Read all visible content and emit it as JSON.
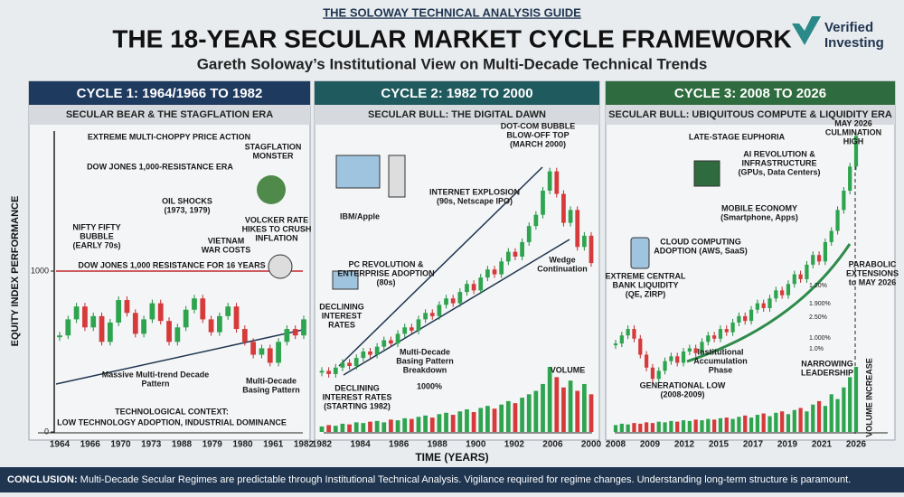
{
  "header": {
    "kicker": "THE SOLOWAY TECHNICAL ANALYSIS GUIDE",
    "title": "THE 18-YEAR SECULAR MARKET CYCLE FRAMEWORK",
    "subtitle": "Gareth Soloway’s Institutional View on Multi-Decade Technical Trends",
    "logo": [
      "Verified",
      "Investing"
    ]
  },
  "axis": {
    "y_label": "EQUITY INDEX PERFORMANCE",
    "yticks": [
      0,
      1000
    ],
    "x_label": "TIME (YEARS)"
  },
  "panels": [
    {
      "title": "CYCLE 1: 1964/1966 TO 1982",
      "subtitle": "SECULAR BEAR & THE STAGFLATION ERA",
      "annotations": [
        [
          "EXTREME MULTI-CHOPPY PRICE ACTION"
        ],
        [
          "DOW JONES 1,000-RESISTANCE ERA"
        ],
        [
          "STAGFLATION",
          "MONSTER"
        ],
        [
          "NIFTY FIFTY",
          "BUBBLE",
          "(EARLY 70s)"
        ],
        [
          "OIL SHOCKS",
          "(1973, 1979)"
        ],
        [
          "VIETNAM",
          "WAR COSTS"
        ],
        [
          "VOLCKER RATE",
          "HIKES TO CRUSH",
          "INFLATION"
        ],
        [
          "DOW JONES 1,000 RESISTANCE FOR 16 YEARS"
        ],
        [
          "Massive Multi-trend Decade",
          "Pattern"
        ],
        [
          "Multi-Decade",
          "Basing Pattern"
        ],
        [
          "TECHNOLOGICAL CONTEXT:"
        ],
        [
          "LOW TECHNOLOGY ADOPTION, INDUSTRIAL DOMINANCE"
        ]
      ],
      "years": [
        "1964",
        "1966",
        "1970",
        "1973",
        "1988",
        "1979",
        "1980",
        "1961",
        "1982"
      ],
      "closes": [
        600,
        700,
        780,
        650,
        720,
        560,
        680,
        820,
        740,
        610,
        700,
        800,
        690,
        560,
        650,
        760,
        830,
        700,
        620,
        720,
        780,
        640,
        560,
        480,
        520,
        430,
        560,
        640,
        600,
        700
      ],
      "volume": []
    },
    {
      "title": "CYCLE 2: 1982 TO 2000",
      "subtitle": "SECULAR BULL: THE DIGITAL DAWN",
      "annotations": [
        [
          "DOT-COM BUBBLE",
          "BLOW-OFF TOP",
          "(MARCH 2000)"
        ],
        [
          "INTERNET EXPLOSION",
          "(90s, Netscape IPO)"
        ],
        [
          "IBM/Apple"
        ],
        [
          "PC REVOLUTION &",
          "ENTERPRISE ADOPTION",
          "(80s)"
        ],
        [
          "Wedge",
          "Continuation"
        ],
        [
          "DECLINING",
          "INTEREST",
          "RATES"
        ],
        [
          "Multi-Decade",
          "Basing Pattern",
          "Breakdown"
        ],
        [
          "1000%"
        ],
        [
          "VOLUME"
        ],
        [
          "DECLINING",
          "INTEREST RATES",
          "(STARTING 1982)"
        ]
      ],
      "years": [
        "1982",
        "1984",
        "1986",
        "1988",
        "1900",
        "1902",
        "2006",
        "2000"
      ],
      "closes": [
        380,
        360,
        400,
        430,
        410,
        460,
        500,
        480,
        530,
        570,
        550,
        610,
        650,
        630,
        700,
        740,
        720,
        790,
        830,
        800,
        870,
        920,
        880,
        960,
        1010,
        980,
        1060,
        1120,
        1090,
        1180,
        1280,
        1350,
        1500,
        1620,
        1480,
        1300,
        1380,
        1150,
        1220,
        1050
      ],
      "volume": [
        8,
        10,
        9,
        12,
        11,
        14,
        13,
        15,
        16,
        14,
        18,
        17,
        20,
        19,
        22,
        24,
        21,
        26,
        28,
        25,
        30,
        33,
        29,
        35,
        38,
        34,
        40,
        45,
        42,
        50,
        55,
        60,
        70,
        95,
        80,
        65,
        75,
        60,
        70,
        55
      ]
    },
    {
      "title": "CYCLE 3: 2008 TO 2026",
      "subtitle": "SECULAR BULL: UBIQUITOUS COMPUTE & LIQUIDITY ERA",
      "annotations": [
        [
          "LATE-STAGE EUPHORIA"
        ],
        [
          "MAY 2026",
          "CULMINATION",
          "HIGH"
        ],
        [
          "AI REVOLUTION &",
          "INFRASTRUCTURE",
          "(GPUs, Data Centers)"
        ],
        [
          "MOBILE ECONOMY",
          "(Smartphone, Apps)"
        ],
        [
          "CLOUD COMPUTING",
          "ADOPTION (AWS, SaaS)"
        ],
        [
          "EXTREME CENTRAL",
          "BANK LIQUIDITY",
          "(QE, ZIRP)"
        ],
        [
          "PARABOLIC",
          "EXTENSIONS",
          "to MAY 2026"
        ],
        [
          "1.20%"
        ],
        [
          "1.900%"
        ],
        [
          "2.50%"
        ],
        [
          "1.000%"
        ],
        [
          "1.0%"
        ],
        [
          "Institutional",
          "Accumulation",
          "Phase"
        ],
        [
          "GENERATIONAL LOW",
          "(2008-2009)"
        ],
        [
          "NARROWING",
          "LEADERSHIP"
        ],
        [
          "VOLUME INCREASE"
        ]
      ],
      "years": [
        "2008",
        "2009",
        "2012",
        "2015",
        "2017",
        "2019",
        "2021",
        "2026"
      ],
      "closes": [
        550,
        600,
        640,
        580,
        480,
        400,
        330,
        380,
        440,
        470,
        430,
        500,
        520,
        490,
        560,
        600,
        580,
        640,
        620,
        680,
        720,
        690,
        760,
        800,
        770,
        830,
        880,
        850,
        920,
        980,
        950,
        1040,
        1100,
        1060,
        1180,
        1250,
        1380,
        1500,
        1650,
        1840
      ],
      "volume": [
        10,
        12,
        11,
        13,
        12,
        14,
        13,
        15,
        14,
        16,
        15,
        17,
        16,
        18,
        17,
        19,
        18,
        20,
        21,
        19,
        22,
        24,
        21,
        25,
        27,
        23,
        28,
        30,
        26,
        32,
        35,
        30,
        40,
        45,
        38,
        55,
        48,
        65,
        80,
        95
      ]
    }
  ],
  "footer": {
    "label": "CONCLUSION:",
    "text": "Multi-Decade Secular Regimes are predictable through Institutional Technical Analysis. Vigilance required for regime changes. Understanding long-term structure is paramount."
  }
}
